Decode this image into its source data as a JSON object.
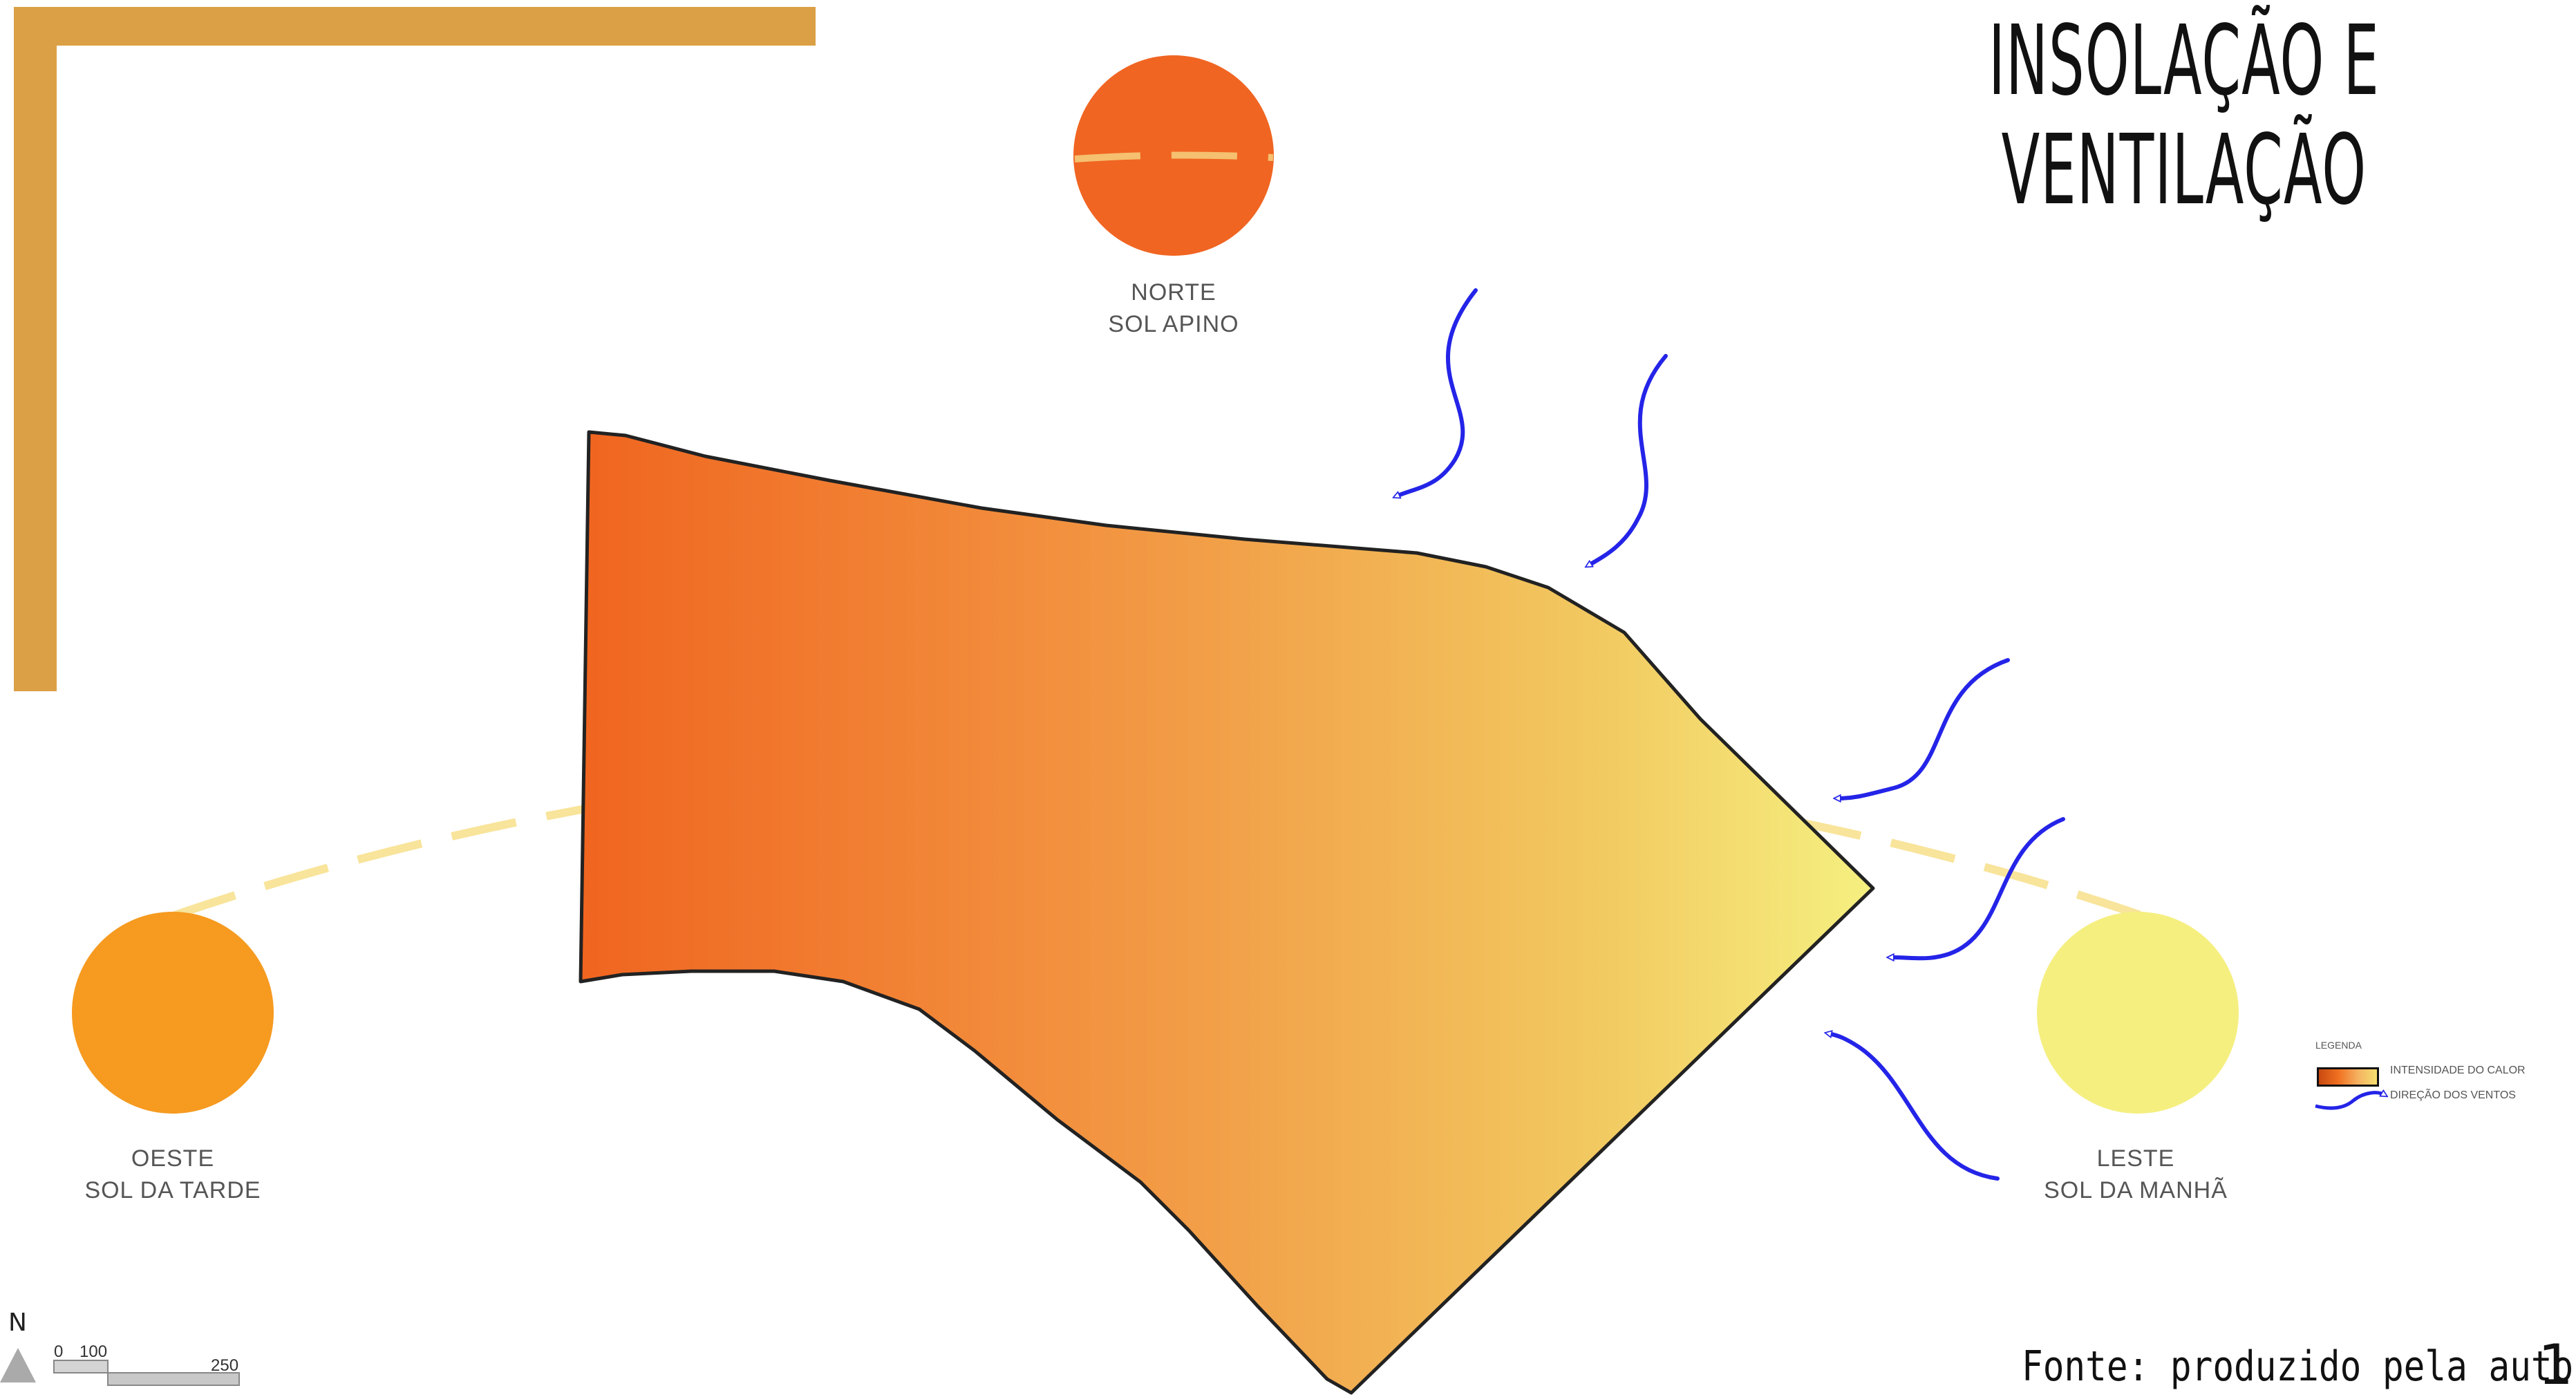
{
  "title": {
    "line1": "INSOLAÇÃO E",
    "line2": "VENTILAÇÃO"
  },
  "suns": {
    "north": {
      "line1": "NORTE",
      "line2": "SOL APINO",
      "color": "#f06522"
    },
    "west": {
      "line1": "OESTE",
      "line2": "SOL DA TARDE",
      "color": "#f69a20"
    },
    "east": {
      "line1": "LESTE",
      "line2": "SOL DA MANHÃ",
      "color": "#f5ef80"
    }
  },
  "legend": {
    "title": "LEGENDA",
    "heat_label": "INTENSIDADE DO CALOR",
    "wind_label": "DIREÇÃO DOS VENTOS",
    "wind_color": "#2424e8"
  },
  "colors": {
    "frame": "#dba045",
    "arc": "#f8e49a",
    "heat_hot": "#f06520",
    "heat_cool": "#f5f080"
  },
  "north_arrow": {
    "label": "N"
  },
  "scale_bar": {
    "label_0": "0",
    "label_100": "100",
    "label_250": "250"
  },
  "source": "Fonte: produzido pela autora",
  "page_number": "1"
}
